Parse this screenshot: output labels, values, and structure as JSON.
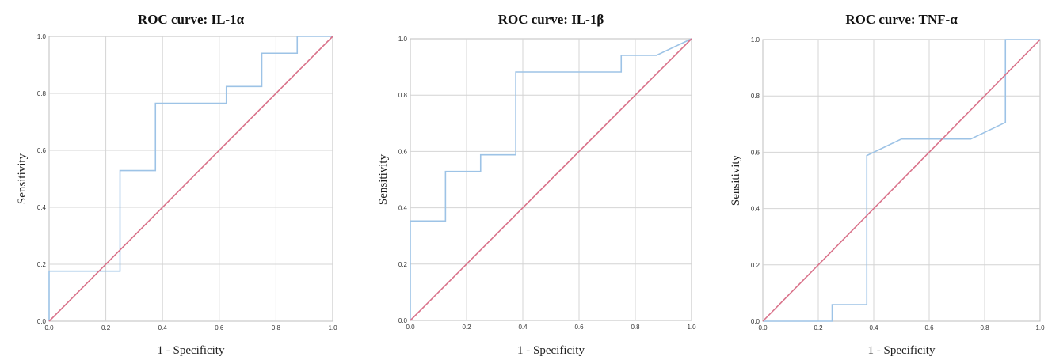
{
  "chart_data": [
    {
      "type": "line",
      "title": "ROC curve: IL-1α",
      "xlabel": "1 - Specificity",
      "ylabel": "Sensitivity",
      "xlim": [
        0,
        1
      ],
      "ylim": [
        0,
        1
      ],
      "x_ticks": [
        "0.0",
        "0.2",
        "0.4",
        "0.6",
        "0.8",
        "1.0"
      ],
      "y_ticks": [
        "0.0",
        "0.2",
        "0.4",
        "0.6",
        "0.8",
        "1.0"
      ],
      "grid": true,
      "series": [
        {
          "color": "#9dc3e6",
          "x": [
            0,
            0,
            0.25,
            0.25,
            0.375,
            0.375,
            0.625,
            0.625,
            0.75,
            0.75,
            0.875,
            0.875,
            1
          ],
          "y": [
            0,
            0.176,
            0.176,
            0.529,
            0.529,
            0.765,
            0.765,
            0.824,
            0.824,
            0.941,
            0.941,
            1,
            1
          ]
        },
        {
          "color": "#d9728a",
          "x": [
            0,
            1
          ],
          "y": [
            0,
            1
          ]
        }
      ]
    },
    {
      "type": "line",
      "title": "ROC curve: IL-1β",
      "xlabel": "1 - Specificity",
      "ylabel": "Sensitivity",
      "xlim": [
        0,
        1
      ],
      "ylim": [
        0,
        1
      ],
      "x_ticks": [
        "0.0",
        "0.2",
        "0.4",
        "0.6",
        "0.8",
        "1.0"
      ],
      "y_ticks": [
        "0.0",
        "0.2",
        "0.4",
        "0.6",
        "0.8",
        "1.0"
      ],
      "grid": true,
      "series": [
        {
          "color": "#9dc3e6",
          "x": [
            0,
            0,
            0.125,
            0.125,
            0.25,
            0.25,
            0.375,
            0.375,
            0.75,
            0.75,
            0.875,
            1
          ],
          "y": [
            0,
            0.353,
            0.353,
            0.529,
            0.529,
            0.588,
            0.588,
            0.882,
            0.882,
            0.941,
            0.941,
            1
          ]
        },
        {
          "color": "#d9728a",
          "x": [
            0,
            1
          ],
          "y": [
            0,
            1
          ]
        }
      ]
    },
    {
      "type": "line",
      "title": "ROC curve: TNF-α",
      "xlabel": "1 - Specificity",
      "ylabel": "Sensitivity",
      "xlim": [
        0,
        1
      ],
      "ylim": [
        0,
        1
      ],
      "x_ticks": [
        "0.0",
        "0.2",
        "0.4",
        "0.6",
        "0.8",
        "1.0"
      ],
      "y_ticks": [
        "0.0",
        "0.2",
        "0.4",
        "0.6",
        "0.8",
        "1.0"
      ],
      "grid": true,
      "series": [
        {
          "color": "#9dc3e6",
          "x": [
            0,
            0.25,
            0.25,
            0.375,
            0.375,
            0.5,
            0.75,
            0.875,
            0.875,
            1
          ],
          "y": [
            0,
            0,
            0.059,
            0.059,
            0.588,
            0.647,
            0.647,
            0.706,
            1,
            1
          ]
        },
        {
          "color": "#d9728a",
          "x": [
            0,
            1
          ],
          "y": [
            0,
            1
          ]
        }
      ]
    }
  ]
}
